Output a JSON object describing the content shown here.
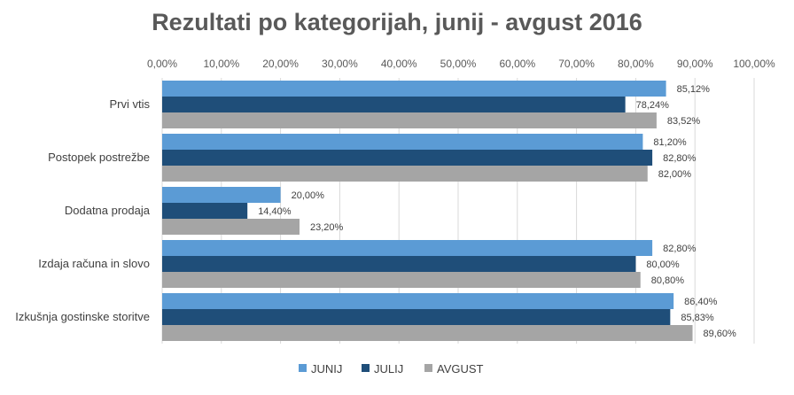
{
  "chart_data": {
    "type": "bar",
    "orientation": "horizontal",
    "title": "Rezultati po kategorijah, junij - avgust 2016",
    "categories": [
      "Prvi vtis",
      "Postopek postrežbe",
      "Dodatna prodaja",
      "Izdaja računa in slovo",
      "Izkušnja gostinske storitve"
    ],
    "series": [
      {
        "name": "JUNIJ",
        "color": "#5B9BD5",
        "values": [
          85.12,
          81.2,
          20.0,
          82.8,
          86.4
        ],
        "labels": [
          "85,12%",
          "81,20%",
          "20,00%",
          "82,80%",
          "86,40%"
        ]
      },
      {
        "name": "JULIJ",
        "color": "#1F4E79",
        "values": [
          78.24,
          82.8,
          14.4,
          80.0,
          85.83
        ],
        "labels": [
          "78,24%",
          "82,80%",
          "14,40%",
          "80,00%",
          "85,83%"
        ]
      },
      {
        "name": "AVGUST",
        "color": "#A5A5A5",
        "values": [
          83.52,
          82.0,
          23.2,
          80.8,
          89.6
        ],
        "labels": [
          "83,52%",
          "82,00%",
          "23,20%",
          "80,80%",
          "89,60%"
        ]
      }
    ],
    "xlim": [
      0,
      100
    ],
    "xticks": [
      0,
      10,
      20,
      30,
      40,
      50,
      60,
      70,
      80,
      90,
      100
    ],
    "xtick_labels": [
      "0,00%",
      "10,00%",
      "20,00%",
      "30,00%",
      "40,00%",
      "50,00%",
      "60,00%",
      "70,00%",
      "80,00%",
      "90,00%",
      "100,00%"
    ],
    "x_axis_position": "top",
    "grid": true,
    "legend_position": "bottom"
  }
}
